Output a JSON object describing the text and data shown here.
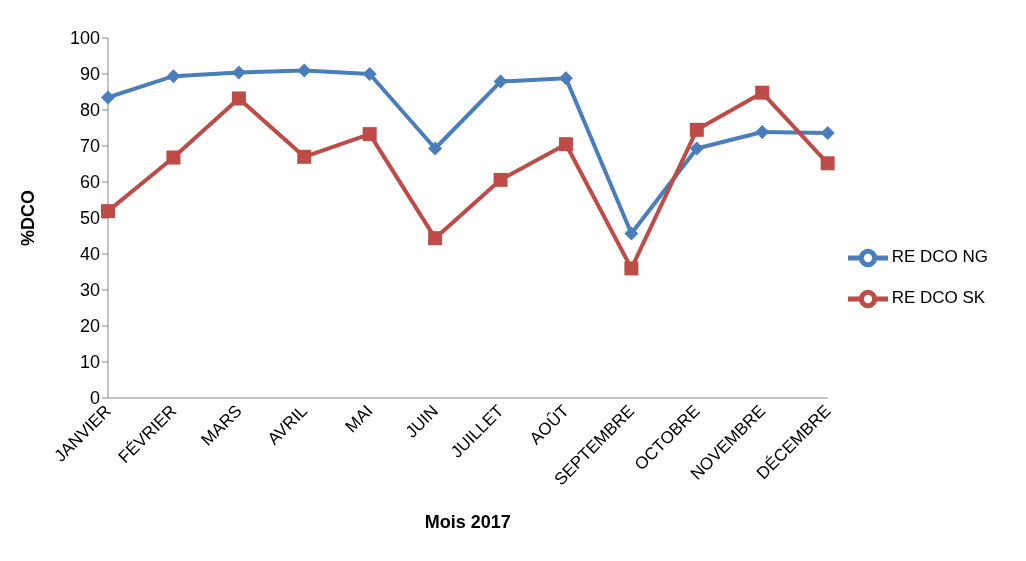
{
  "chart_data": {
    "type": "line",
    "xlabel": "Mois 2017",
    "ylabel": "%DCO",
    "categories": [
      "JANVIER",
      "FÉVRIER",
      "MARS",
      "AVRIL",
      "MAI",
      "JUIN",
      "JUILLET",
      "AOÛT",
      "SEPTEMBRE",
      "OCTOBRE",
      "NOVEMBRE",
      "DÉCEMBRE"
    ],
    "series": [
      {
        "name": "RE DCO NG",
        "color": "#4a7ebb",
        "marker": "diamond",
        "values": [
          83.5,
          89.4,
          90.4,
          91,
          90,
          69.3,
          87.9,
          88.8,
          45.7,
          69.3,
          73.9,
          73.6
        ]
      },
      {
        "name": "RE DCO SK",
        "color": "#be4b48",
        "marker": "square",
        "values": [
          51.9,
          66.8,
          83.2,
          67,
          73.3,
          44.4,
          60.6,
          70.5,
          36,
          74.5,
          84.8,
          65.2
        ]
      }
    ],
    "ylim": [
      0,
      100
    ],
    "yticks": [
      0,
      10,
      20,
      30,
      40,
      50,
      60,
      70,
      80,
      90,
      100
    ],
    "grid": false,
    "legend": "right",
    "line_style": "solid"
  }
}
